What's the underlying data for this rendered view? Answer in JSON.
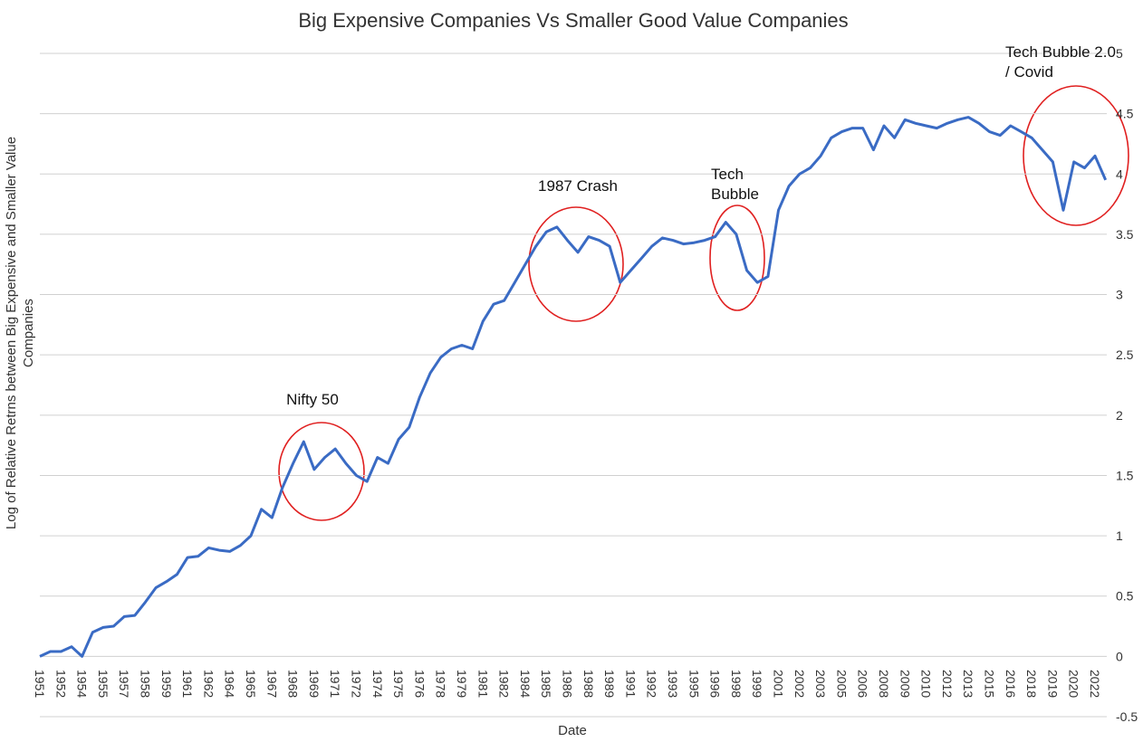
{
  "chart_data": {
    "type": "line",
    "title": "Big Expensive Companies Vs Smaller Good Value Companies",
    "x_label": "Date",
    "y_label": [
      "Log of Relative Retrns between Big Expensive and Smaller Value",
      "Companies"
    ],
    "annotations": [
      [
        "Nifty 50"
      ],
      [
        "1987 Crash"
      ],
      [
        "Tech",
        "Bubble"
      ],
      [
        "Tech Bubble 2.0",
        "/ Covid"
      ]
    ],
    "categories": [
      "1951",
      null,
      "1952",
      null,
      "1954",
      null,
      "1955",
      null,
      "1957",
      null,
      "1958",
      null,
      "1959",
      null,
      "1961",
      null,
      "1962",
      null,
      "1964",
      null,
      "1965",
      null,
      "1967",
      null,
      "1968",
      null,
      "1969",
      null,
      "1971",
      null,
      "1972",
      null,
      "1974",
      null,
      "1975",
      null,
      "1976",
      null,
      "1978",
      null,
      "1979",
      null,
      "1981",
      null,
      "1982",
      null,
      "1984",
      null,
      "1985",
      null,
      "1986",
      null,
      "1988",
      null,
      "1989",
      null,
      "1991",
      null,
      "1992",
      null,
      "1993",
      null,
      "1995",
      null,
      "1996",
      null,
      "1998",
      null,
      "1999",
      null,
      "2001",
      null,
      "2002",
      null,
      "2003",
      null,
      "2005",
      null,
      "2006",
      null,
      "2008",
      null,
      "2009",
      null,
      "2010",
      null,
      "2012",
      null,
      "2013",
      null,
      "2015",
      null,
      "2016",
      null,
      "2018",
      null,
      "2019",
      null,
      "2020",
      null,
      "2022",
      null
    ],
    "series": [
      {
        "name": "Log of Relative Returns",
        "color": "#3a6bc4",
        "values": [
          0.0,
          0.04,
          0.04,
          0.08,
          0.0,
          0.2,
          0.24,
          0.25,
          0.33,
          0.34,
          0.45,
          0.57,
          0.62,
          0.68,
          0.82,
          0.83,
          0.9,
          0.88,
          0.87,
          0.92,
          1.0,
          1.22,
          1.15,
          1.4,
          1.6,
          1.78,
          1.55,
          1.65,
          1.72,
          1.6,
          1.5,
          1.45,
          1.65,
          1.6,
          1.8,
          1.9,
          2.15,
          2.35,
          2.48,
          2.55,
          2.58,
          2.55,
          2.78,
          2.92,
          2.95,
          3.1,
          3.25,
          3.4,
          3.52,
          3.56,
          3.45,
          3.35,
          3.48,
          3.45,
          3.4,
          3.1,
          3.2,
          3.3,
          3.4,
          3.47,
          3.45,
          3.42,
          3.43,
          3.45,
          3.48,
          3.6,
          3.5,
          3.2,
          3.1,
          3.15,
          3.7,
          3.9,
          4.0,
          4.05,
          4.15,
          4.3,
          4.35,
          4.38,
          4.38,
          4.2,
          4.4,
          4.3,
          4.45,
          4.42,
          4.4,
          4.38,
          4.42,
          4.45,
          4.47,
          4.42,
          4.35,
          4.32,
          4.4,
          4.35,
          4.3,
          4.2,
          4.1,
          3.7,
          4.1,
          4.05,
          4.15,
          3.95
        ]
      }
    ],
    "ylim": [
      -0.5,
      5
    ],
    "yticks": [
      -0.5,
      0,
      0.5,
      1,
      1.5,
      2,
      2.5,
      3,
      3.5,
      4,
      4.5,
      5
    ],
    "grid": true
  }
}
